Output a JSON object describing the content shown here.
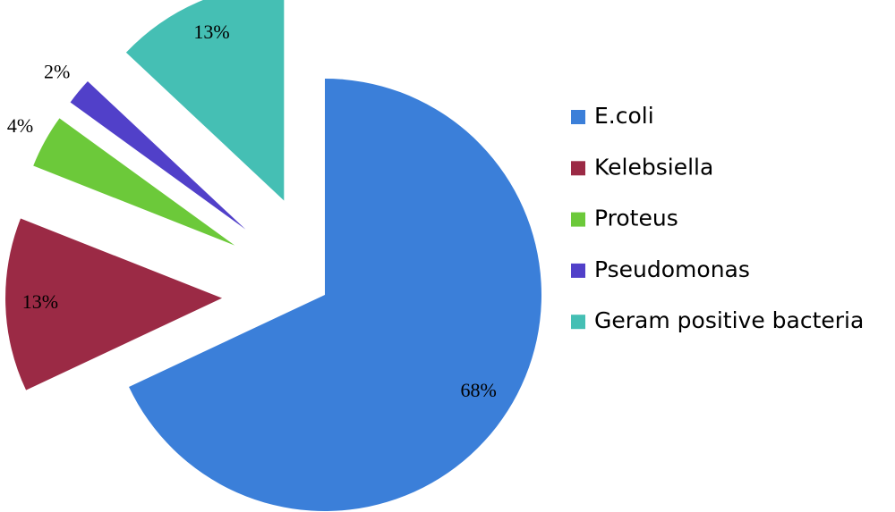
{
  "chart_data": {
    "type": "pie",
    "categories": [
      "E.coli",
      "Kelebsiella",
      "Proteus",
      "Pseudomonas",
      "Geram positive bacteria"
    ],
    "values": [
      68,
      13,
      4,
      2,
      13
    ],
    "value_labels": [
      "68%",
      "13%",
      "4%",
      "2%",
      "13%"
    ],
    "colors": [
      "#3b7fd9",
      "#9b2a45",
      "#6cc93a",
      "#5140c9",
      "#45bfb4"
    ],
    "legend": "right"
  }
}
